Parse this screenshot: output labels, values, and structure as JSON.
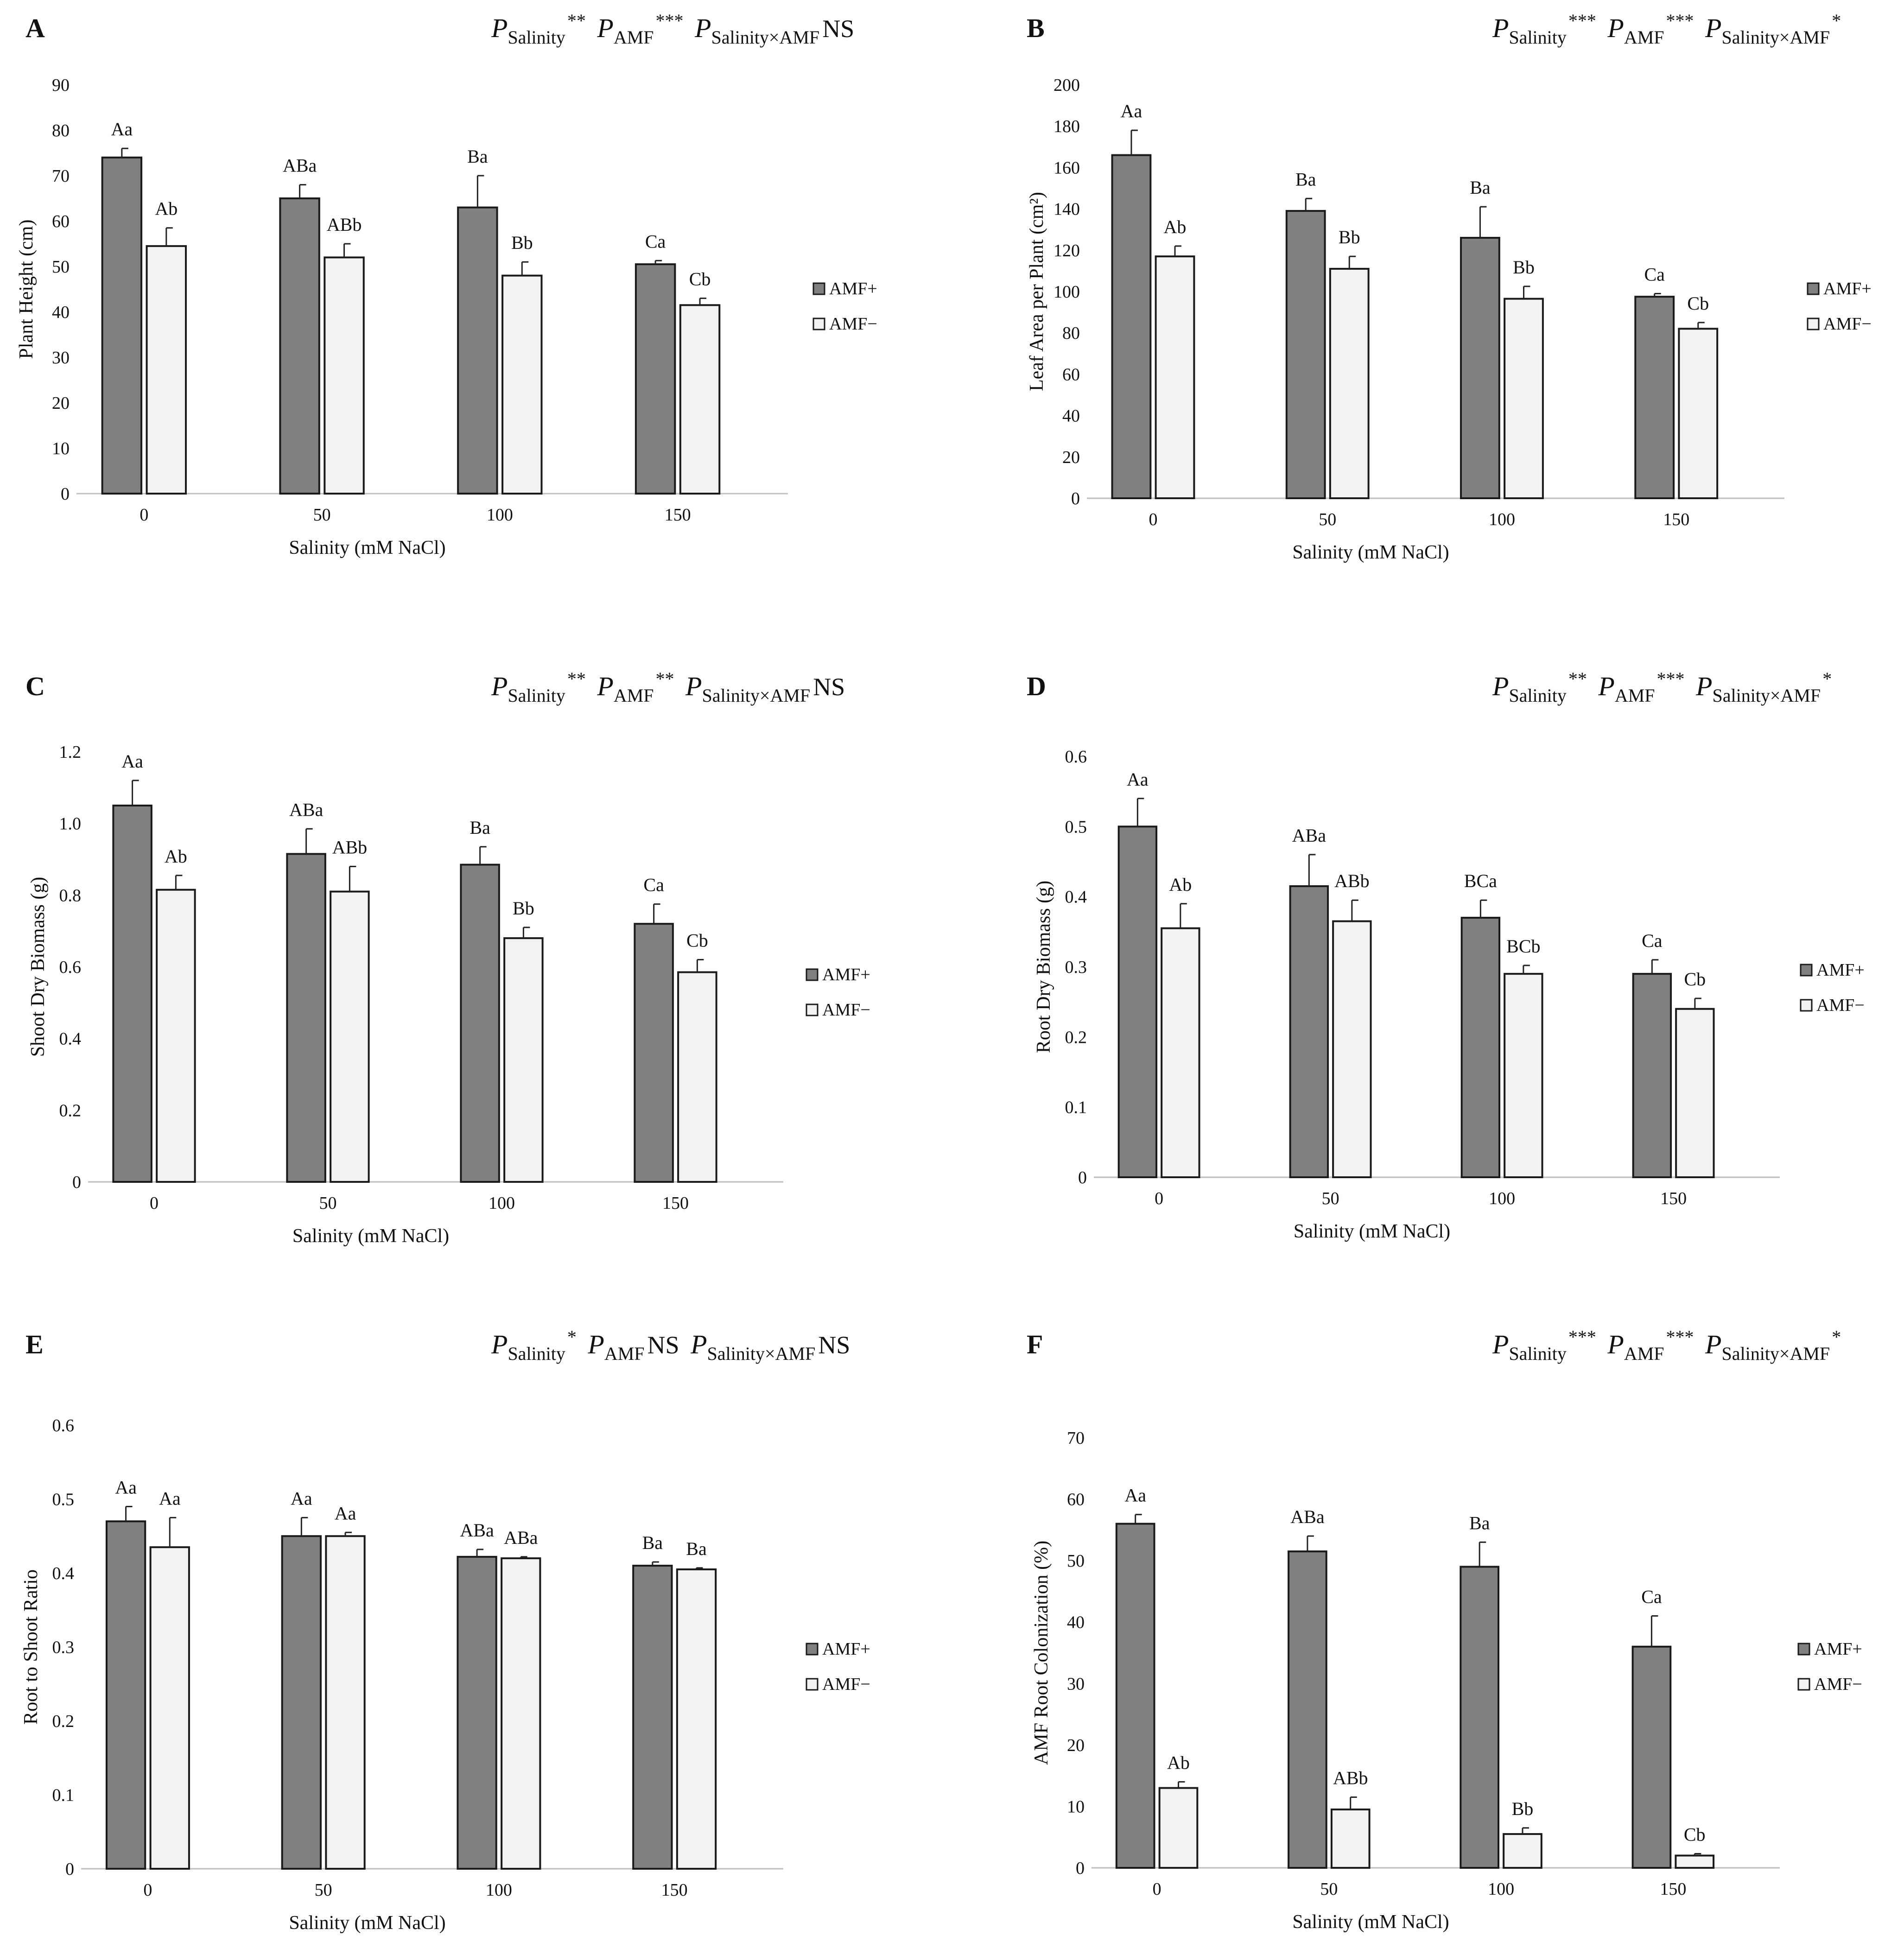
{
  "figure": {
    "legend": [
      "AMF+",
      "AMF−"
    ],
    "colors": {
      "amf_plus": "#808080",
      "amf_minus": "#f2f2f2",
      "stroke": "#1a1a1a"
    },
    "significance_symbols": {
      "p": "P",
      "salinity": "Salinity",
      "amf": "AMF",
      "interaction": "Salinity×AMF"
    }
  },
  "chart_data": [
    {
      "panel": "A",
      "type": "bar",
      "significance": {
        "salinity": "**",
        "amf": "***",
        "interaction": "NS"
      },
      "xlabel": "Salinity (mM NaCl)",
      "ylabel": "Plant Height (cm)",
      "categories": [
        "0",
        "50",
        "100",
        "150"
      ],
      "ylim": [
        0,
        90
      ],
      "yticks": [
        "0",
        "10",
        "20",
        "30",
        "40",
        "50",
        "60",
        "70",
        "80",
        "90"
      ],
      "series": [
        {
          "name": "AMF+",
          "values": [
            74,
            65,
            63,
            50.5
          ],
          "errors": [
            2,
            3,
            7,
            0.8
          ],
          "labels": [
            "Aa",
            "ABa",
            "Ba",
            "Ca"
          ]
        },
        {
          "name": "AMF−",
          "values": [
            54.5,
            52,
            48,
            41.5
          ],
          "errors": [
            4,
            3,
            3,
            1.5
          ],
          "labels": [
            "Ab",
            "ABb",
            "Bb",
            "Cb"
          ]
        }
      ]
    },
    {
      "panel": "B",
      "type": "bar",
      "significance": {
        "salinity": "***",
        "amf": "***",
        "interaction": "*"
      },
      "xlabel": "Salinity (mM NaCl)",
      "ylabel": "Leaf Area per Plant (cm²)",
      "categories": [
        "0",
        "50",
        "100",
        "150"
      ],
      "ylim": [
        0,
        200
      ],
      "yticks": [
        "0",
        "20",
        "40",
        "60",
        "80",
        "100",
        "120",
        "140",
        "160",
        "180",
        "200"
      ],
      "series": [
        {
          "name": "AMF+",
          "values": [
            166,
            139,
            126,
            97.5
          ],
          "errors": [
            12,
            6,
            15,
            1.5
          ],
          "labels": [
            "Aa",
            "Ba",
            "Ba",
            "Ca"
          ]
        },
        {
          "name": "AMF−",
          "values": [
            117,
            111,
            96.5,
            82
          ],
          "errors": [
            5,
            6,
            6,
            3
          ],
          "labels": [
            "Ab",
            "Bb",
            "Bb",
            "Cb"
          ]
        }
      ]
    },
    {
      "panel": "C",
      "type": "bar",
      "significance": {
        "salinity": "**",
        "amf": "**",
        "interaction": "NS"
      },
      "xlabel": "Salinity (mM NaCl)",
      "ylabel": "Shoot Dry Biomass (g)",
      "categories": [
        "0",
        "50",
        "100",
        "150"
      ],
      "ylim": [
        0,
        1.2
      ],
      "yticks": [
        "0",
        "0.2",
        "0.4",
        "0.6",
        "0.8",
        "1.0",
        "1.2"
      ],
      "series": [
        {
          "name": "AMF+",
          "values": [
            1.05,
            0.915,
            0.885,
            0.72
          ],
          "errors": [
            0.07,
            0.07,
            0.05,
            0.055
          ],
          "labels": [
            "Aa",
            "ABa",
            "Ba",
            "Ca"
          ]
        },
        {
          "name": "AMF−",
          "values": [
            0.815,
            0.81,
            0.68,
            0.585
          ],
          "errors": [
            0.04,
            0.07,
            0.03,
            0.035
          ],
          "labels": [
            "Ab",
            "ABb",
            "Bb",
            "Cb"
          ]
        }
      ]
    },
    {
      "panel": "D",
      "type": "bar",
      "significance": {
        "salinity": "**",
        "amf": "***",
        "interaction": "*"
      },
      "xlabel": "Salinity (mM NaCl)",
      "ylabel": "Root Dry Biomass (g)",
      "categories": [
        "0",
        "50",
        "100",
        "150"
      ],
      "ylim": [
        0,
        0.6
      ],
      "yticks": [
        "0",
        "0.1",
        "0.2",
        "0.3",
        "0.4",
        "0.5",
        "0.6"
      ],
      "series": [
        {
          "name": "AMF+",
          "values": [
            0.5,
            0.415,
            0.37,
            0.29
          ],
          "errors": [
            0.04,
            0.045,
            0.025,
            0.02
          ],
          "labels": [
            "Aa",
            "ABa",
            "BCa",
            "Ca"
          ]
        },
        {
          "name": "AMF−",
          "values": [
            0.355,
            0.365,
            0.29,
            0.24
          ],
          "errors": [
            0.035,
            0.03,
            0.012,
            0.015
          ],
          "labels": [
            "Ab",
            "ABb",
            "BCb",
            "Cb"
          ]
        }
      ]
    },
    {
      "panel": "E",
      "type": "bar",
      "significance": {
        "salinity": "*",
        "amf": "NS",
        "interaction": "NS"
      },
      "xlabel": "Salinity (mM NaCl)",
      "ylabel": "Root to Shoot Ratio",
      "categories": [
        "0",
        "50",
        "100",
        "150"
      ],
      "ylim": [
        0,
        0.6
      ],
      "yticks": [
        "0",
        "0.1",
        "0.2",
        "0.3",
        "0.4",
        "0.5",
        "0.6"
      ],
      "series": [
        {
          "name": "AMF+",
          "values": [
            0.47,
            0.45,
            0.422,
            0.41
          ],
          "errors": [
            0.02,
            0.025,
            0.01,
            0.005
          ],
          "labels": [
            "Aa",
            "Aa",
            "ABa",
            "Ba"
          ]
        },
        {
          "name": "AMF−",
          "values": [
            0.435,
            0.45,
            0.42,
            0.405
          ],
          "errors": [
            0.04,
            0.005,
            0.002,
            0.002
          ],
          "labels": [
            "Aa",
            "Aa",
            "ABa",
            "Ba"
          ]
        }
      ]
    },
    {
      "panel": "F",
      "type": "bar",
      "significance": {
        "salinity": "***",
        "amf": "***",
        "interaction": "*"
      },
      "xlabel": "Salinity (mM NaCl)",
      "ylabel": "AMF Root Colonization (%)",
      "categories": [
        "0",
        "50",
        "100",
        "150"
      ],
      "ylim": [
        0,
        70
      ],
      "yticks": [
        "0",
        "10",
        "20",
        "30",
        "40",
        "50",
        "60",
        "70"
      ],
      "series": [
        {
          "name": "AMF+",
          "values": [
            56,
            51.5,
            49,
            36
          ],
          "errors": [
            1.5,
            2.5,
            4,
            5
          ],
          "labels": [
            "Aa",
            "ABa",
            "Ba",
            "Ca"
          ]
        },
        {
          "name": "AMF−",
          "values": [
            13,
            9.5,
            5.5,
            2
          ],
          "errors": [
            1,
            2,
            1,
            0.3
          ],
          "labels": [
            "Ab",
            "ABb",
            "Bb",
            "Cb"
          ]
        }
      ]
    }
  ]
}
